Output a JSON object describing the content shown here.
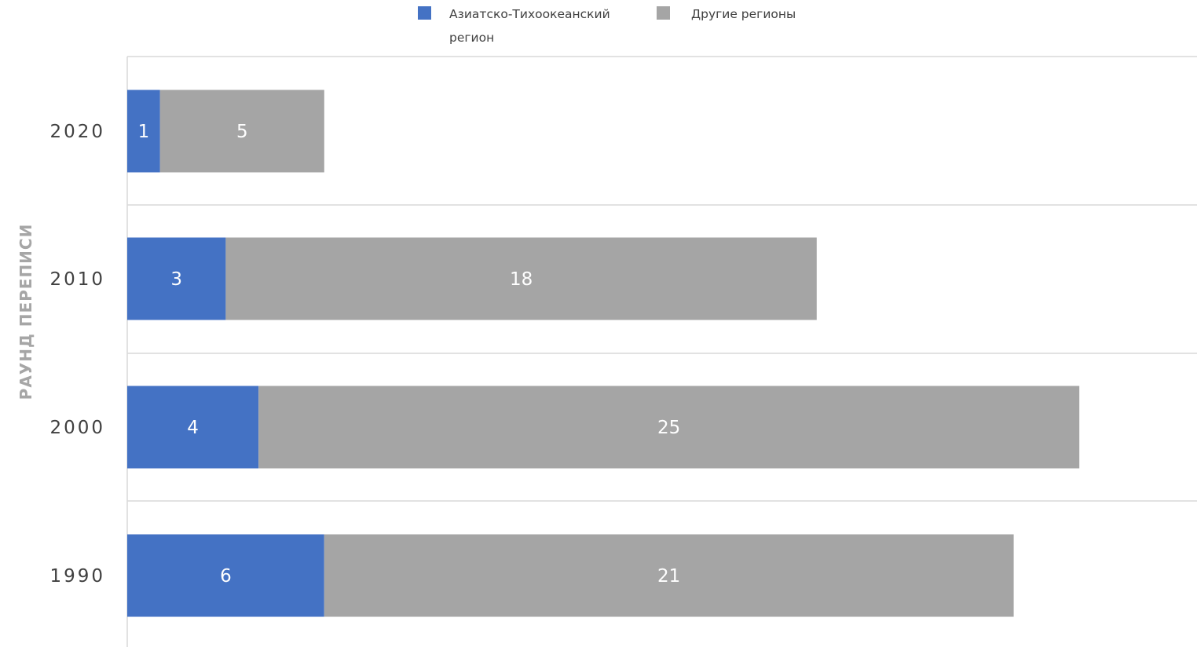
{
  "chart_data": {
    "type": "bar",
    "orientation": "horizontal",
    "stacked": true,
    "categories": [
      "1990",
      "2000",
      "2010",
      "2020"
    ],
    "series": [
      {
        "name": "Азиатско-Тихоокеанский регион",
        "color": "#4472c4",
        "values": [
          6,
          4,
          3,
          1
        ]
      },
      {
        "name": "Другие регионы",
        "color": "#a5a5a5",
        "values": [
          21,
          25,
          18,
          5
        ]
      }
    ],
    "title": "",
    "xlabel": "",
    "ylabel": "РАУНД ПЕРЕПИСИ",
    "xlim": [
      0,
      32.6
    ],
    "grid": "horizontal",
    "legend_position": "top-center",
    "data_labels": true
  }
}
